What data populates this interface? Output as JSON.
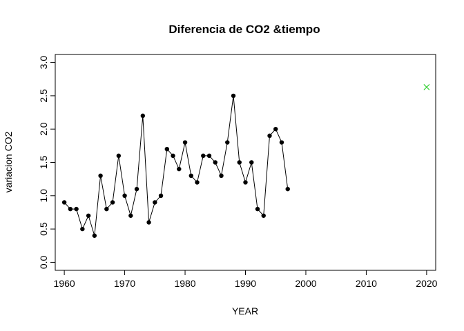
{
  "chart_data": {
    "type": "line",
    "title": "Diferencia de CO2 &tiempo",
    "xlabel": "YEAR",
    "ylabel": "variacion CO2",
    "xlim": [
      1958.5,
      2021.5
    ],
    "ylim": [
      -0.12,
      3.12
    ],
    "xticks": [
      1960,
      1970,
      1980,
      1990,
      2000,
      2010,
      2020
    ],
    "yticks": [
      "0.0",
      "0.5",
      "1.0",
      "1.5",
      "2.0",
      "2.5",
      "3.0"
    ],
    "series": [
      {
        "style": "line-with-points",
        "color": "#000000",
        "x": [
          1960,
          1961,
          1962,
          1963,
          1964,
          1965,
          1966,
          1967,
          1968,
          1969,
          1970,
          1971,
          1972,
          1973,
          1974,
          1975,
          1976,
          1977,
          1978,
          1979,
          1980,
          1981,
          1982,
          1983,
          1984,
          1985,
          1986,
          1987,
          1988,
          1989,
          1990,
          1991,
          1992,
          1993,
          1994,
          1995,
          1996,
          1997
        ],
        "y": [
          0.9,
          0.8,
          0.8,
          0.5,
          0.7,
          0.4,
          1.3,
          0.8,
          0.9,
          1.6,
          1.0,
          0.7,
          1.1,
          2.2,
          0.6,
          0.9,
          1.0,
          1.7,
          1.6,
          1.4,
          1.8,
          1.3,
          1.2,
          1.6,
          1.6,
          1.5,
          1.3,
          1.8,
          2.5,
          1.5,
          1.2,
          1.5,
          0.8,
          0.7,
          1.9,
          2.0,
          1.8,
          1.1
        ]
      },
      {
        "style": "cross-marker",
        "color": "#22cc22",
        "x": [
          2020
        ],
        "y": [
          2.63
        ]
      }
    ],
    "grid": false,
    "legend": "none"
  }
}
